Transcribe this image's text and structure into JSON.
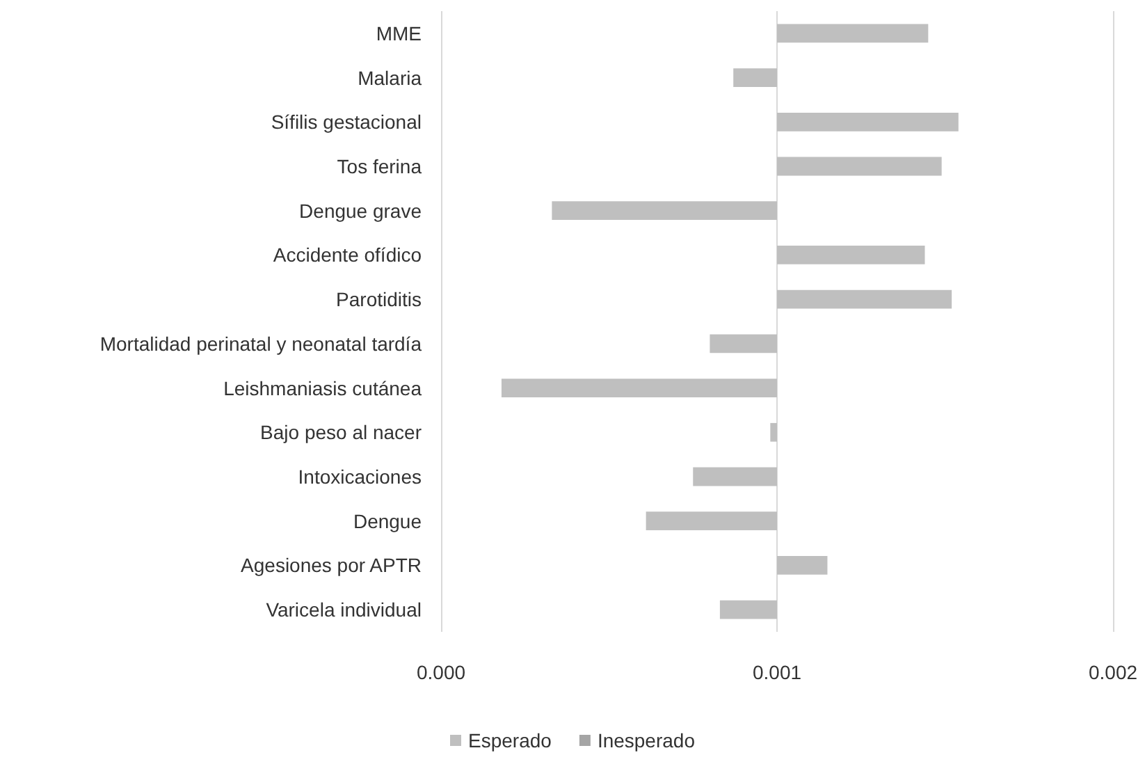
{
  "chart_data": {
    "type": "bar",
    "orientation": "horizontal",
    "categories": [
      "MME",
      "Malaria",
      "Sífilis gestacional",
      "Tos ferina",
      "Dengue grave",
      "Accidente ofídico",
      "Parotiditis",
      "Mortalidad perinatal y neonatal tardía",
      "Leishmaniasis cutánea",
      "Bajo peso al nacer",
      "Intoxicaciones",
      "Dengue",
      "Agesiones por APTR",
      "Varicela individual"
    ],
    "series": [
      {
        "name": "Esperado",
        "color": "#bfbfbf",
        "base": [
          0.001,
          0.001,
          0.001,
          0.001,
          0.001,
          0.001,
          0.001,
          0.001,
          0.001,
          0.001,
          0.001,
          0.001,
          0.001,
          0.001
        ],
        "values": [
          0.00045,
          -0.00013,
          0.00054,
          0.00049,
          -0.00067,
          0.00044,
          0.00052,
          -0.0002,
          -0.00082,
          -2e-05,
          -0.00025,
          -0.00039,
          0.00015,
          -0.00017
        ]
      },
      {
        "name": "Inesperado",
        "color": "#a5a5a5",
        "values": [
          null,
          null,
          null,
          null,
          null,
          null,
          null,
          null,
          null,
          null,
          null,
          null,
          null,
          null
        ]
      }
    ],
    "xlim": [
      0,
      0.002
    ],
    "xticks": [
      {
        "value": 0,
        "label": "0.000"
      },
      {
        "value": 0.001,
        "label": "0.001"
      },
      {
        "value": 0.002,
        "label": "0.002"
      }
    ],
    "grid": "x",
    "legend": "bottom"
  }
}
